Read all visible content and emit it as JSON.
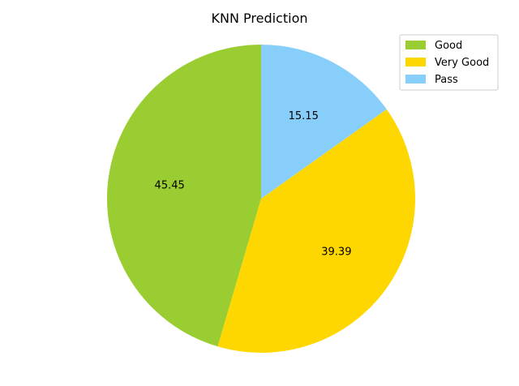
{
  "chart_data": {
    "type": "pie",
    "title": "KNN Prediction",
    "categories": [
      "Good",
      "Very Good",
      "Pass"
    ],
    "values": [
      45.45,
      39.39,
      15.15
    ],
    "labels": [
      "45.45",
      "39.39",
      "15.15"
    ],
    "colors": [
      "#9ACD32",
      "#FFD700",
      "#87CEFA"
    ],
    "start_angle_deg": 90,
    "direction": "counterclockwise",
    "legend": {
      "placement": "top-right",
      "entries": [
        "Good",
        "Very Good",
        "Pass"
      ]
    }
  }
}
